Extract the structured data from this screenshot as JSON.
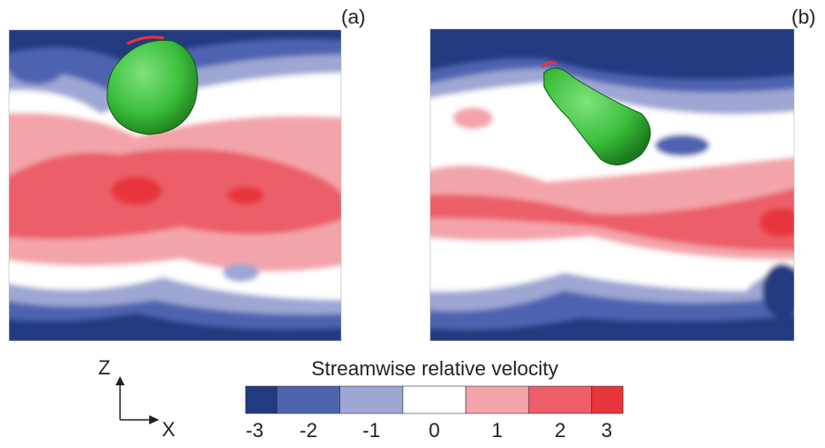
{
  "panels": [
    {
      "label": "(a)"
    },
    {
      "label": "(b)"
    }
  ],
  "axes": {
    "vertical": "Z",
    "horizontal": "X"
  },
  "colorbar": {
    "title": "Streamwise relative velocity",
    "ticks": [
      -3,
      -2,
      -1,
      0,
      1,
      2,
      3
    ],
    "colors": [
      "#233a80",
      "#4d63b0",
      "#9ea6d3",
      "#ffffff",
      "#f3a4aa",
      "#ec5f68",
      "#e8353c"
    ]
  }
}
